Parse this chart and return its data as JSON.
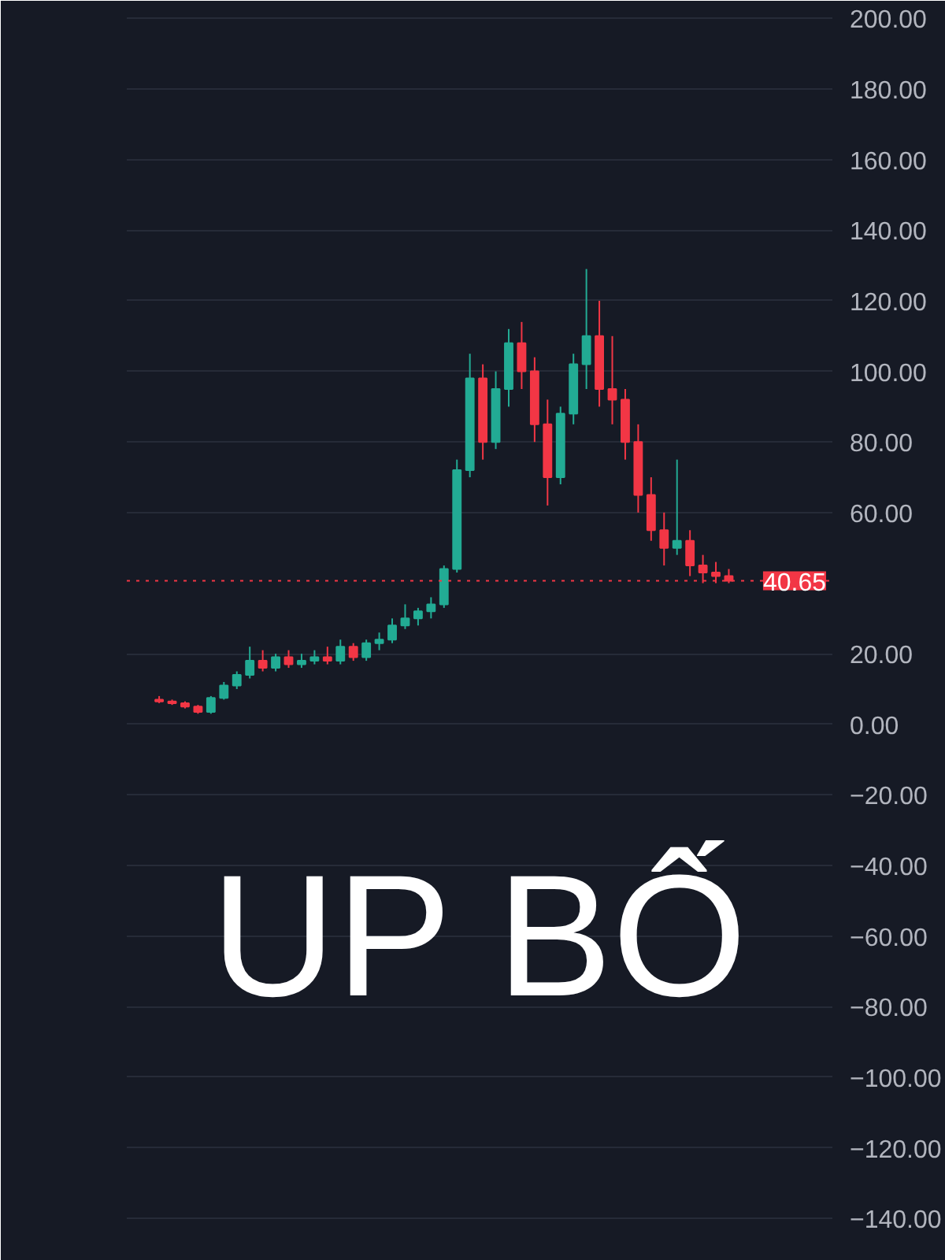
{
  "chart_data": {
    "type": "candlestick",
    "categories": [
      null,
      null,
      null,
      null,
      null,
      null,
      null,
      null,
      null,
      null,
      null,
      null,
      null,
      null,
      null,
      null,
      null,
      null,
      null,
      null,
      null,
      null,
      null,
      null,
      null,
      null,
      null,
      null,
      null,
      null,
      null,
      null,
      null,
      null,
      null,
      null,
      null,
      null,
      null,
      null,
      null,
      null,
      null,
      null,
      null
    ],
    "ohlc": [
      [
        7,
        8,
        6,
        6.5
      ],
      [
        6.5,
        7,
        5.5,
        6
      ],
      [
        6,
        6.5,
        4.5,
        5
      ],
      [
        5,
        5.5,
        3,
        3.5
      ],
      [
        3.5,
        8,
        3,
        7.5
      ],
      [
        7.5,
        12,
        7,
        11
      ],
      [
        11,
        15,
        10,
        14
      ],
      [
        14,
        22,
        13,
        18
      ],
      [
        18,
        21,
        15,
        16
      ],
      [
        16,
        20,
        15,
        19
      ],
      [
        19,
        21,
        16,
        17
      ],
      [
        17,
        20,
        16,
        18
      ],
      [
        18,
        21,
        17,
        19
      ],
      [
        19,
        22,
        17,
        18
      ],
      [
        18,
        24,
        17,
        22
      ],
      [
        22,
        23,
        18,
        19
      ],
      [
        19,
        24,
        18,
        23
      ],
      [
        23,
        26,
        21,
        24
      ],
      [
        24,
        30,
        23,
        28
      ],
      [
        28,
        34,
        27,
        30
      ],
      [
        30,
        33,
        28,
        32
      ],
      [
        32,
        36,
        30,
        34
      ],
      [
        34,
        45,
        33,
        44
      ],
      [
        44,
        75,
        43,
        72
      ],
      [
        72,
        105,
        70,
        98
      ],
      [
        98,
        102,
        75,
        80
      ],
      [
        80,
        100,
        78,
        95
      ],
      [
        95,
        112,
        90,
        108
      ],
      [
        108,
        114,
        95,
        100
      ],
      [
        100,
        104,
        80,
        85
      ],
      [
        85,
        92,
        62,
        70
      ],
      [
        70,
        90,
        68,
        88
      ],
      [
        88,
        105,
        85,
        102
      ],
      [
        102,
        129,
        95,
        110
      ],
      [
        110,
        120,
        90,
        95
      ],
      [
        95,
        110,
        85,
        92
      ],
      [
        92,
        95,
        75,
        80
      ],
      [
        80,
        85,
        60,
        65
      ],
      [
        65,
        70,
        52,
        55
      ],
      [
        55,
        60,
        45,
        50
      ],
      [
        50,
        75,
        48,
        52
      ],
      [
        52,
        55,
        42,
        45
      ],
      [
        45,
        48,
        40,
        43
      ],
      [
        43,
        46,
        40,
        42
      ],
      [
        42,
        44,
        40,
        40.65
      ]
    ],
    "colors": [
      "#f23645",
      "#f23645",
      "#f23645",
      "#f23645",
      "#22ab94",
      "#22ab94",
      "#22ab94",
      "#22ab94",
      "#f23645",
      "#22ab94",
      "#f23645",
      "#22ab94",
      "#22ab94",
      "#f23645",
      "#22ab94",
      "#f23645",
      "#22ab94",
      "#22ab94",
      "#22ab94",
      "#22ab94",
      "#22ab94",
      "#22ab94",
      "#22ab94",
      "#22ab94",
      "#22ab94",
      "#f23645",
      "#22ab94",
      "#22ab94",
      "#f23645",
      "#f23645",
      "#f23645",
      "#22ab94",
      "#22ab94",
      "#22ab94",
      "#f23645",
      "#f23645",
      "#f23645",
      "#f23645",
      "#f23645",
      "#f23645",
      "#22ab94",
      "#f23645",
      "#f23645",
      "#f23645",
      "#f23645"
    ],
    "ylim": [
      -152,
      205
    ],
    "yticks": [
      {
        "value": 200,
        "label": "200.00"
      },
      {
        "value": 180,
        "label": "180.00"
      },
      {
        "value": 160,
        "label": "160.00"
      },
      {
        "value": 140,
        "label": "140.00"
      },
      {
        "value": 120,
        "label": "120.00"
      },
      {
        "value": 100,
        "label": "100.00"
      },
      {
        "value": 80,
        "label": "80.00"
      },
      {
        "value": 60,
        "label": "60.00"
      },
      {
        "value": 20,
        "label": "20.00"
      },
      {
        "value": 0,
        "label": "0.00"
      },
      {
        "value": -20,
        "label": "−20.00"
      },
      {
        "value": -40,
        "label": "−40.00"
      },
      {
        "value": -60,
        "label": "−60.00"
      },
      {
        "value": -80,
        "label": "−80.00"
      },
      {
        "value": -100,
        "label": "−100.00"
      },
      {
        "value": -120,
        "label": "−120.00"
      },
      {
        "value": -140,
        "label": "−140.00"
      }
    ],
    "ref_lines": [
      {
        "axis": "y",
        "value": 40.65,
        "label": "40.65",
        "color": "#f23645",
        "line_style": "dotted"
      }
    ],
    "annotations": [
      "UP BỐ"
    ],
    "grid": "y",
    "tick_labels": "y"
  }
}
